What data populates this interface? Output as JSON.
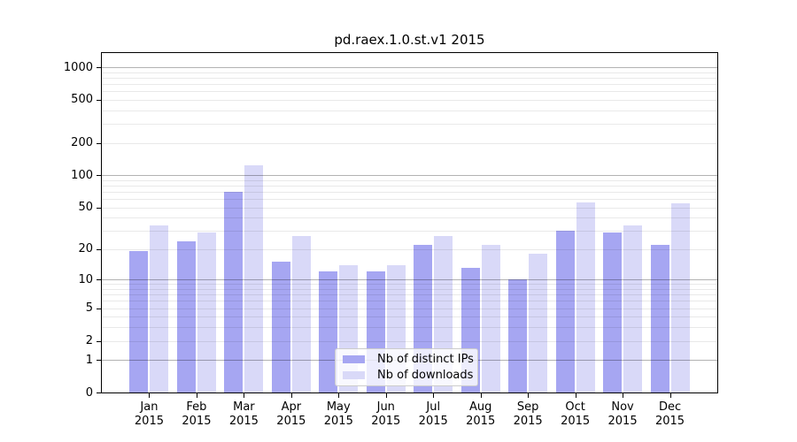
{
  "chart_data": {
    "type": "bar",
    "title": "pd.raex.1.0.st.v1 2015",
    "categories": [
      "Jan",
      "Feb",
      "Mar",
      "Apr",
      "May",
      "Jun",
      "Jul",
      "Aug",
      "Sep",
      "Oct",
      "Nov",
      "Dec"
    ],
    "category_year": "2015",
    "series": [
      {
        "name": "Nb of distinct IPs",
        "color": "#a6a6f2",
        "values": [
          19,
          24,
          70,
          15,
          12,
          12,
          22,
          13,
          10,
          30,
          29,
          22
        ]
      },
      {
        "name": "Nb of downloads",
        "color": "#d9d9f8",
        "values": [
          34,
          29,
          124,
          27,
          14,
          14,
          27,
          22,
          18,
          56,
          34,
          55
        ]
      }
    ],
    "yscale": "log1p",
    "ylim": [
      0,
      1350
    ],
    "yticks": [
      0,
      1,
      2,
      5,
      10,
      20,
      50,
      100,
      200,
      500,
      1000
    ],
    "grid": {
      "major_at": [
        1,
        10,
        100,
        1000
      ],
      "minor": "2-9 per decade",
      "grid_above_bars": true
    },
    "legend_position": "lower center",
    "xlabel": "",
    "ylabel": ""
  }
}
